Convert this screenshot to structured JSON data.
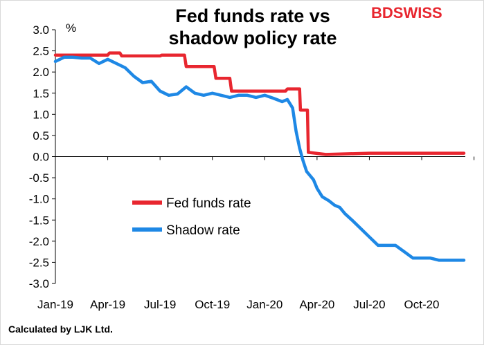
{
  "title_line1": "Fed funds rate vs",
  "title_line2": "shadow policy rate",
  "brand": {
    "part1": "BD",
    "part2": "SWISS",
    "color": "#e8262f"
  },
  "footer": "Calculated by LJK  Ltd.",
  "chart_data": {
    "type": "line",
    "unit_label": "%",
    "ylim": [
      -3.0,
      3.0
    ],
    "ytick_labels": [
      "3.0",
      "2.5",
      "2.0",
      "1.5",
      "1.0",
      "0.5",
      "0.0",
      "-0.5",
      "-1.0",
      "-1.5",
      "-2.0",
      "-2.5",
      "-3.0"
    ],
    "xtick_labels": [
      "Jan-19",
      "Apr-19",
      "Jul-19",
      "Oct-19",
      "Jan-20",
      "Apr-20",
      "Jul-20",
      "Oct-20"
    ],
    "xlim_months": [
      0,
      23.5
    ],
    "legend_position": "center",
    "grid": false,
    "series": [
      {
        "name": "Fed funds rate",
        "color": "#e8262f",
        "x": [
          0,
          3.0,
          3.1,
          3.7,
          3.8,
          6.0,
          6.1,
          7.4,
          7.5,
          8.5,
          8.6,
          9.1,
          9.2,
          10.0,
          10.1,
          13.2,
          13.3,
          14.0,
          14.05,
          14.45,
          14.5,
          15.5,
          18.0,
          23.5
        ],
        "y": [
          2.4,
          2.4,
          2.45,
          2.45,
          2.38,
          2.38,
          2.4,
          2.4,
          2.13,
          2.13,
          2.13,
          2.13,
          1.85,
          1.85,
          1.55,
          1.55,
          1.6,
          1.6,
          1.1,
          1.1,
          0.1,
          0.05,
          0.08,
          0.08
        ]
      },
      {
        "name": "Shadow rate",
        "color": "#1e88e5",
        "x": [
          0,
          0.5,
          1.0,
          1.5,
          2.0,
          2.5,
          3.0,
          3.5,
          4.0,
          4.5,
          5.0,
          5.5,
          6.0,
          6.5,
          7.0,
          7.5,
          8.0,
          8.5,
          9.0,
          9.5,
          10.0,
          10.5,
          11.0,
          11.5,
          12.0,
          12.5,
          13.0,
          13.3,
          13.6,
          13.8,
          14.0,
          14.2,
          14.4,
          14.6,
          14.8,
          15.0,
          15.3,
          15.7,
          16.0,
          16.3,
          16.6,
          17.0,
          17.5,
          18.0,
          18.5,
          19.0,
          19.5,
          20.0,
          20.5,
          21.0,
          21.5,
          22.0,
          22.5,
          23.0,
          23.5
        ],
        "y": [
          2.25,
          2.35,
          2.35,
          2.33,
          2.33,
          2.2,
          2.3,
          2.2,
          2.1,
          1.9,
          1.75,
          1.78,
          1.55,
          1.45,
          1.48,
          1.65,
          1.5,
          1.45,
          1.5,
          1.45,
          1.4,
          1.45,
          1.45,
          1.4,
          1.45,
          1.38,
          1.3,
          1.35,
          1.15,
          0.6,
          0.2,
          -0.1,
          -0.35,
          -0.45,
          -0.55,
          -0.75,
          -0.95,
          -1.05,
          -1.15,
          -1.2,
          -1.35,
          -1.5,
          -1.7,
          -1.9,
          -2.1,
          -2.1,
          -2.1,
          -2.25,
          -2.4,
          -2.4,
          -2.4,
          -2.45,
          -2.45,
          -2.45,
          -2.45
        ]
      }
    ]
  }
}
